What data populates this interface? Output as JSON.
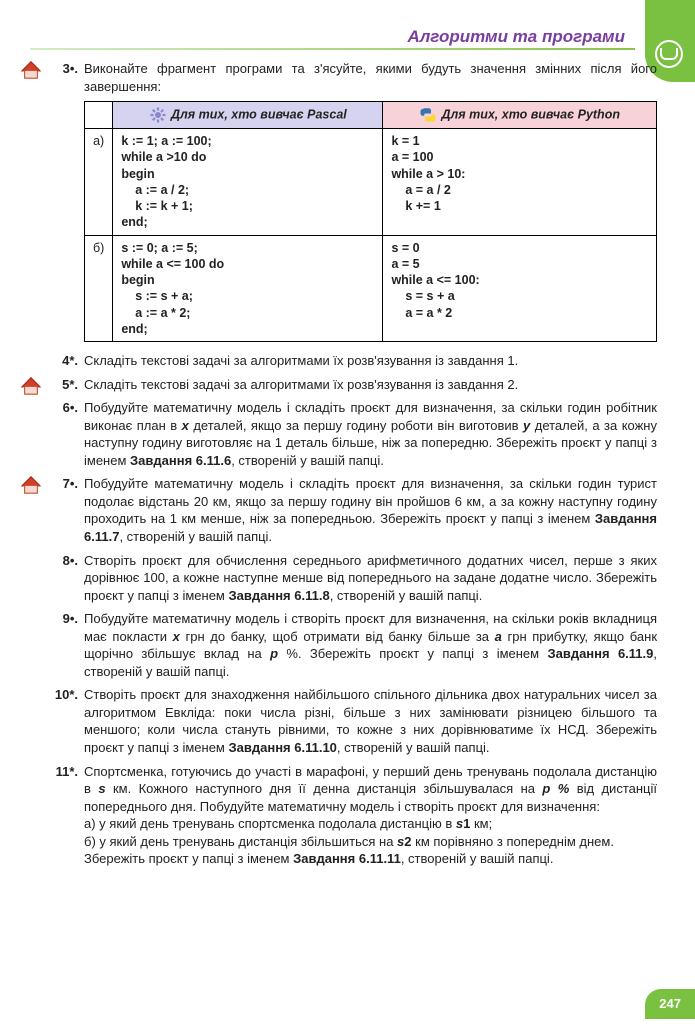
{
  "header": {
    "title": "Алгоритми та програми"
  },
  "page_number": "247",
  "colors": {
    "accent_green": "#7ac142",
    "header_purple": "#7a3ea0",
    "pascal_bg": "#d5d3ef",
    "python_bg": "#f8d2d9"
  },
  "task3": {
    "num": "3•.",
    "text": "Виконайте фрагмент програми та з'ясуйте, якими будуть значення змінних після його завершення:",
    "th_pascal": "Для тих, хто вивчає Pascal",
    "th_python": "Для тих, хто вивчає Python",
    "rows": [
      {
        "label": "а)",
        "pascal": "k := 1; a := 100;\nwhile a >10 do\nbegin\n    a := a / 2;\n    k := k + 1;\nend;",
        "python": "k = 1\na = 100\nwhile a > 10:\n    a = a / 2\n    k += 1"
      },
      {
        "label": "б)",
        "pascal": "s := 0; a := 5;\nwhile a <= 100 do\nbegin\n    s := s + a;\n    a := a * 2;\nend;",
        "python": "s = 0\na = 5\nwhile a <= 100:\n    s = s + a\n    a = a * 2"
      }
    ]
  },
  "tasks": [
    {
      "num": "4*.",
      "house": false,
      "html": "Складіть текстові задачі за алгоритмами їх розв'язування із завдання 1."
    },
    {
      "num": "5*.",
      "house": true,
      "html": "Складіть текстові задачі за алгоритмами їх розв'язування із завдання 2."
    },
    {
      "num": "6•.",
      "house": false,
      "html": "Побудуйте математичну модель і складіть проєкт для визначення, за скільки годин робітник виконає план в <b><i>x</i></b> деталей, якщо за першу годину роботи він виготовив <b><i>y</i></b> деталей, а за кожну наступну годину виготовляє на 1 деталь більше, ніж за попередню. Збережіть проєкт у папці з іменем <b>Завдання 6.11.6</b>, створеній у вашій папці."
    },
    {
      "num": "7•.",
      "house": true,
      "html": "Побудуйте математичну модель і складіть проєкт для визначення, за скільки годин турист подолає відстань 20 км, якщо за першу годину він пройшов 6 км, а за кожну наступну годину проходить на 1 км менше, ніж за попередньою. Збережіть проєкт у папці з іменем <b>Завдання 6.11.7</b>, створеній у вашій папці."
    },
    {
      "num": "8•.",
      "house": false,
      "html": "Створіть проєкт для обчислення середнього арифметичного додатних чисел, перше з яких дорівнює 100, а кожне наступне менше від попереднього на задане додатне число. Збережіть проєкт у папці з іменем <b>Завдання 6.11.8</b>, створеній у вашій папці."
    },
    {
      "num": "9•.",
      "house": false,
      "html": "Побудуйте математичну модель і створіть проєкт для визначення, на скільки років вкладниця має покласти <b><i>x</i></b> грн до банку, щоб отримати від банку більше за <b><i>a</i></b> грн прибутку, якщо банк щорічно збільшує вклад на <b><i>p</i></b> %. Збережіть проєкт у папці з іменем <b>Завдання 6.11.9</b>, створеній у вашій папці."
    },
    {
      "num": "10*.",
      "house": false,
      "html": "Створіть проєкт для знаходження найбільшого спільного дільника двох натуральних чисел за алгоритмом Евкліда: поки числа різні, більше з них замінювати різницею більшого та меншого; коли числа стануть рівними, то кожне з них дорівнюватиме їх НСД. Збережіть проєкт у папці з іменем <b>Завдання 6.11.10</b>, створеній у вашій папці."
    },
    {
      "num": "11*.",
      "house": false,
      "html": "Спортсменка, готуючись до участі в марафоні, у перший день тренувань подолала дистанцію в <b><i>s</i></b> км. Кожного наступного дня її денна дистанція збільшувалася на <b><i>p %</i></b> від дистанції попереднього дня. Побудуйте математичну модель і створіть проєкт для визначення:<br>а) у який день тренувань спортсменка подолала дистанцію в <b><i>s</i>1</b> км;<br>б) у який день тренувань дистанція збільшиться на <b><i>s</i>2</b> км порівняно з попереднім днем.<br>Збережіть проєкт у папці з іменем <b>Завдання 6.11.11</b>, створеній у вашій папці."
    }
  ]
}
